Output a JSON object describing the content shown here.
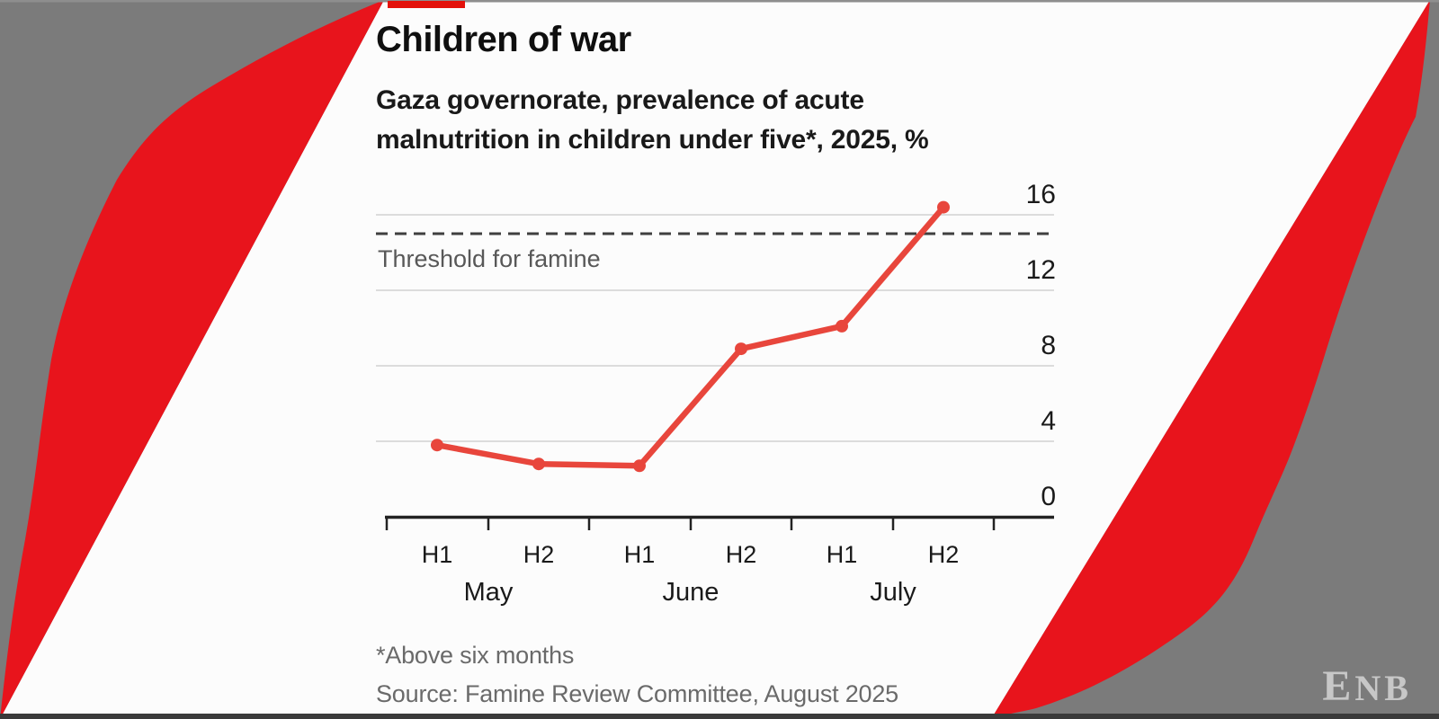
{
  "page": {
    "background_color": "#7b7b7b",
    "panel_color": "#fcfcfc",
    "swoosh_red": "#e8141c",
    "tag_red": "#e3120b",
    "bottom_border_color": "#3a3a3a"
  },
  "header": {
    "title": "Children of war",
    "subtitle_line1": "Gaza governorate, prevalence of acute",
    "subtitle_line2": "malnutrition in children under five*, 2025, %"
  },
  "chart_data": {
    "type": "line",
    "title": "Children of war",
    "subtitle": "Gaza governorate, prevalence of acute malnutrition in children under five*, 2025, %",
    "unit": "%",
    "x_categories": [
      "May H1",
      "May H2",
      "June H1",
      "June H2",
      "July H1",
      "July H2"
    ],
    "x_tick_labels": [
      "H1",
      "H2",
      "H1",
      "H2",
      "H1",
      "H2"
    ],
    "month_labels": [
      "May",
      "June",
      "July"
    ],
    "values": [
      3.8,
      2.8,
      2.7,
      8.9,
      10.1,
      16.4
    ],
    "y_ticks": [
      0,
      4,
      8,
      12,
      16
    ],
    "ylim": [
      0,
      17
    ],
    "grid": true,
    "legend": "none",
    "threshold": {
      "value": 15,
      "label": "Threshold for famine"
    },
    "line_color": "#e8463c",
    "gridline_color": "#d2d2d2",
    "axis_color": "#232323",
    "tick_label_color": "#1a1a1a",
    "threshold_line_color": "#3f3f3f",
    "threshold_label_color": "#585858"
  },
  "notes": {
    "footnote": "*Above six months",
    "source": "Source: Famine Review Committee, August 2025"
  },
  "brand": {
    "logo_first": "E",
    "logo_rest": "NB"
  }
}
